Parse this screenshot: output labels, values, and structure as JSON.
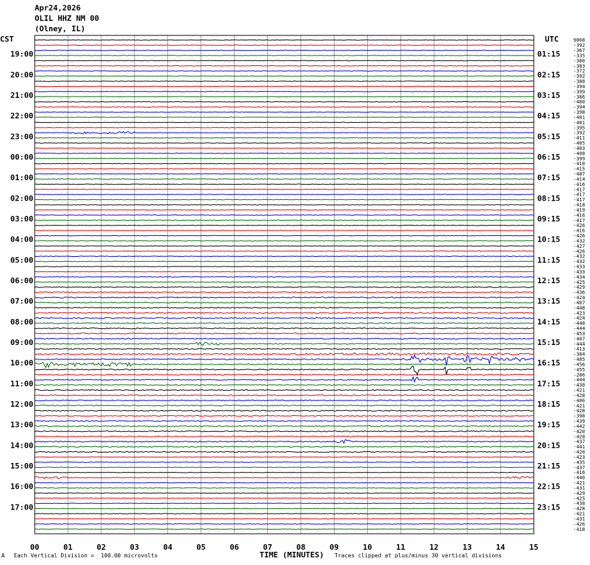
{
  "header": {
    "date": "Apr24,2026",
    "station": "OLIL HHZ NM 00",
    "location": "(Olney, IL)"
  },
  "left_tz": "CST",
  "right_tz": "UTC",
  "footer": {
    "scale_note": "Each Vertical Division =  100.00 microvolts",
    "clip_note": "Traces clipped at plus/minus 30 vertical divisions",
    "mark": "A"
  },
  "trace_colors": [
    "#000000",
    "#e00000",
    "#0000e0",
    "#007000"
  ],
  "chart_data": {
    "type": "line",
    "title": "",
    "xlabel": "TIME (MINUTES)",
    "ylabel": "",
    "x_ticks": [
      "00",
      "01",
      "02",
      "03",
      "04",
      "05",
      "06",
      "07",
      "08",
      "09",
      "10",
      "11",
      "12",
      "13",
      "14",
      "15"
    ],
    "xlim": [
      0,
      15
    ],
    "grid": true,
    "num_traces": 96,
    "left_labels": [
      "19:00",
      "20:00",
      "21:00",
      "22:00",
      "23:00",
      "00:00",
      "01:00",
      "02:00",
      "03:00",
      "04:00",
      "05:00",
      "06:00",
      "07:00",
      "08:00",
      "09:00",
      "10:00",
      "11:00",
      "12:00",
      "13:00",
      "14:00",
      "15:00",
      "16:00",
      "17:00"
    ],
    "right_labels": [
      "01:15",
      "02:15",
      "03:15",
      "04:15",
      "05:15",
      "06:15",
      "07:15",
      "08:15",
      "09:15",
      "10:15",
      "11:15",
      "12:15",
      "13:15",
      "14:15",
      "15:15",
      "16:15",
      "17:15",
      "18:15",
      "19:15",
      "20:15",
      "21:15",
      "22:15",
      "23:15"
    ],
    "trace_offsets": [
      "9068",
      "-392",
      "-367",
      "-335",
      "-380",
      "-383",
      "-372",
      "-392",
      "-388",
      "-394",
      "-399",
      "-386",
      "-400",
      "-394",
      "-398",
      "-401",
      "-401",
      "-395",
      "-392",
      "-411",
      "-405",
      "-403",
      "-408",
      "-399",
      "-410",
      "-415",
      "-407",
      "-414",
      "-416",
      "-417",
      "-417",
      "-417",
      "-418",
      "-419",
      "-416",
      "-417",
      "-426",
      "-416",
      "-426",
      "-432",
      "-427",
      "-426",
      "-432",
      "-432",
      "-433",
      "-433",
      "-434",
      "-425",
      "-429",
      "-436",
      "-424",
      "-407",
      "-448",
      "-423",
      "-424",
      "-448",
      "-444",
      "-453",
      "-407",
      "-444",
      "-413",
      "-384",
      "-405",
      "-456",
      "-455",
      "-286",
      "-444",
      "-430",
      "-421",
      "-428",
      "-406",
      "-421",
      "-428",
      "-398",
      "-439",
      "-442",
      "-420",
      "-428",
      "-437",
      "-441",
      "-420",
      "-423",
      "-435",
      "-437",
      "-416",
      "-440",
      "-421",
      "-431",
      "-429",
      "-425",
      "-438",
      "-428",
      "-421",
      "-431",
      "-426",
      "-418"
    ]
  }
}
